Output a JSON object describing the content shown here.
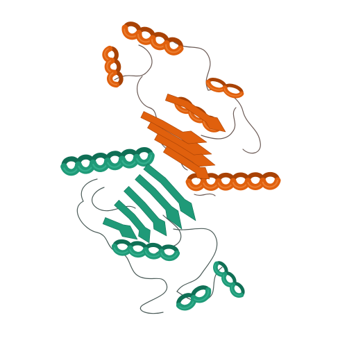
{
  "image": {
    "subject": "protein-ribbon-dimer",
    "background_color": "#ffffff"
  },
  "chains": [
    {
      "id": "chain-a",
      "color": "#e0600d",
      "shade_color": "#a84205",
      "highlight_color": "#f08a40",
      "loop_color": "#6b5a55"
    },
    {
      "id": "chain-b",
      "color": "#1f9a78",
      "shade_color": "#0f6f55",
      "highlight_color": "#3cb896",
      "loop_color": "#4a5a57"
    }
  ]
}
